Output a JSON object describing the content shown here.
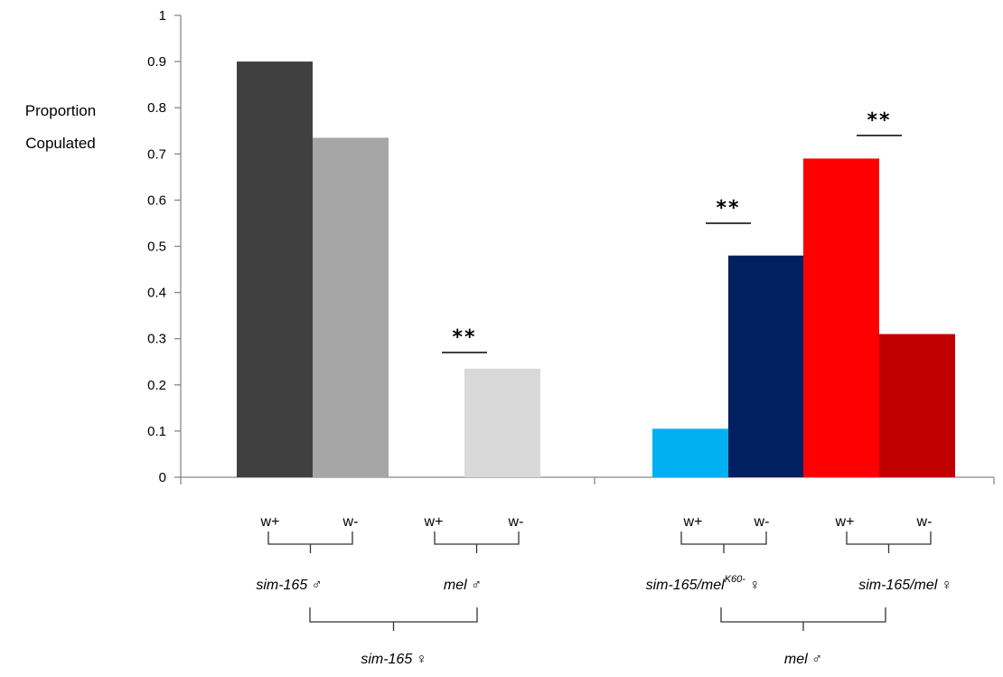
{
  "chart_data": {
    "type": "bar",
    "ylabel_lines": [
      "Proportion",
      "Copulated"
    ],
    "ylim": [
      0,
      1
    ],
    "yticks": [
      "0",
      "0.1",
      "0.2",
      "0.3",
      "0.4",
      "0.5",
      "0.6",
      "0.7",
      "0.8",
      "0.9",
      "1"
    ],
    "grid": false,
    "bars": [
      {
        "category": "w+",
        "group": "sim-165 ♂",
        "outer": "sim-165 ♀",
        "value": 0.9,
        "color": "#404040"
      },
      {
        "category": "w-",
        "group": "sim-165 ♂",
        "outer": "sim-165 ♀",
        "value": 0.735,
        "color": "#a6a6a6"
      },
      {
        "category": "w+",
        "group": "mel ♂",
        "outer": "sim-165 ♀",
        "value": 0.0,
        "color": "#d9d9d9"
      },
      {
        "category": "w-",
        "group": "mel ♂",
        "outer": "sim-165 ♀",
        "value": 0.235,
        "color": "#d9d9d9"
      },
      {
        "category": "w+",
        "group": "sim-165/melK60- ♀",
        "outer": "mel ♂",
        "value": 0.105,
        "color": "#00b0f0"
      },
      {
        "category": "w-",
        "group": "sim-165/melK60- ♀",
        "outer": "mel ♂",
        "value": 0.48,
        "color": "#002060"
      },
      {
        "category": "w+",
        "group": "sim-165/mel ♀",
        "outer": "mel ♂",
        "value": 0.69,
        "color": "#ff0000"
      },
      {
        "category": "w-",
        "group": "sim-165/mel ♀",
        "outer": "mel ♂",
        "value": 0.31,
        "color": "#c00000"
      }
    ],
    "significance": [
      {
        "label": "**",
        "pair": [
          2,
          3
        ],
        "level": 0.27
      },
      {
        "label": "**",
        "pair": [
          4,
          5
        ],
        "level": 0.55
      },
      {
        "label": "**",
        "pair": [
          6,
          7
        ],
        "level": 0.74
      }
    ],
    "x_category_labels": [
      "w+",
      "w-",
      "w+",
      "w-",
      "w+",
      "w-",
      "w+",
      "w-"
    ],
    "group_labels": [
      {
        "text": "sim-165",
        "symbol": "♂"
      },
      {
        "text": "mel",
        "symbol": "♂"
      },
      {
        "text": "sim-165/mel",
        "sup": "K60-",
        "symbol": "♀"
      },
      {
        "text": "sim-165/mel",
        "symbol": "♀"
      }
    ],
    "outer_labels": [
      {
        "text": "sim-165",
        "symbol": "♀"
      },
      {
        "text": "mel",
        "symbol": "♂"
      }
    ]
  }
}
